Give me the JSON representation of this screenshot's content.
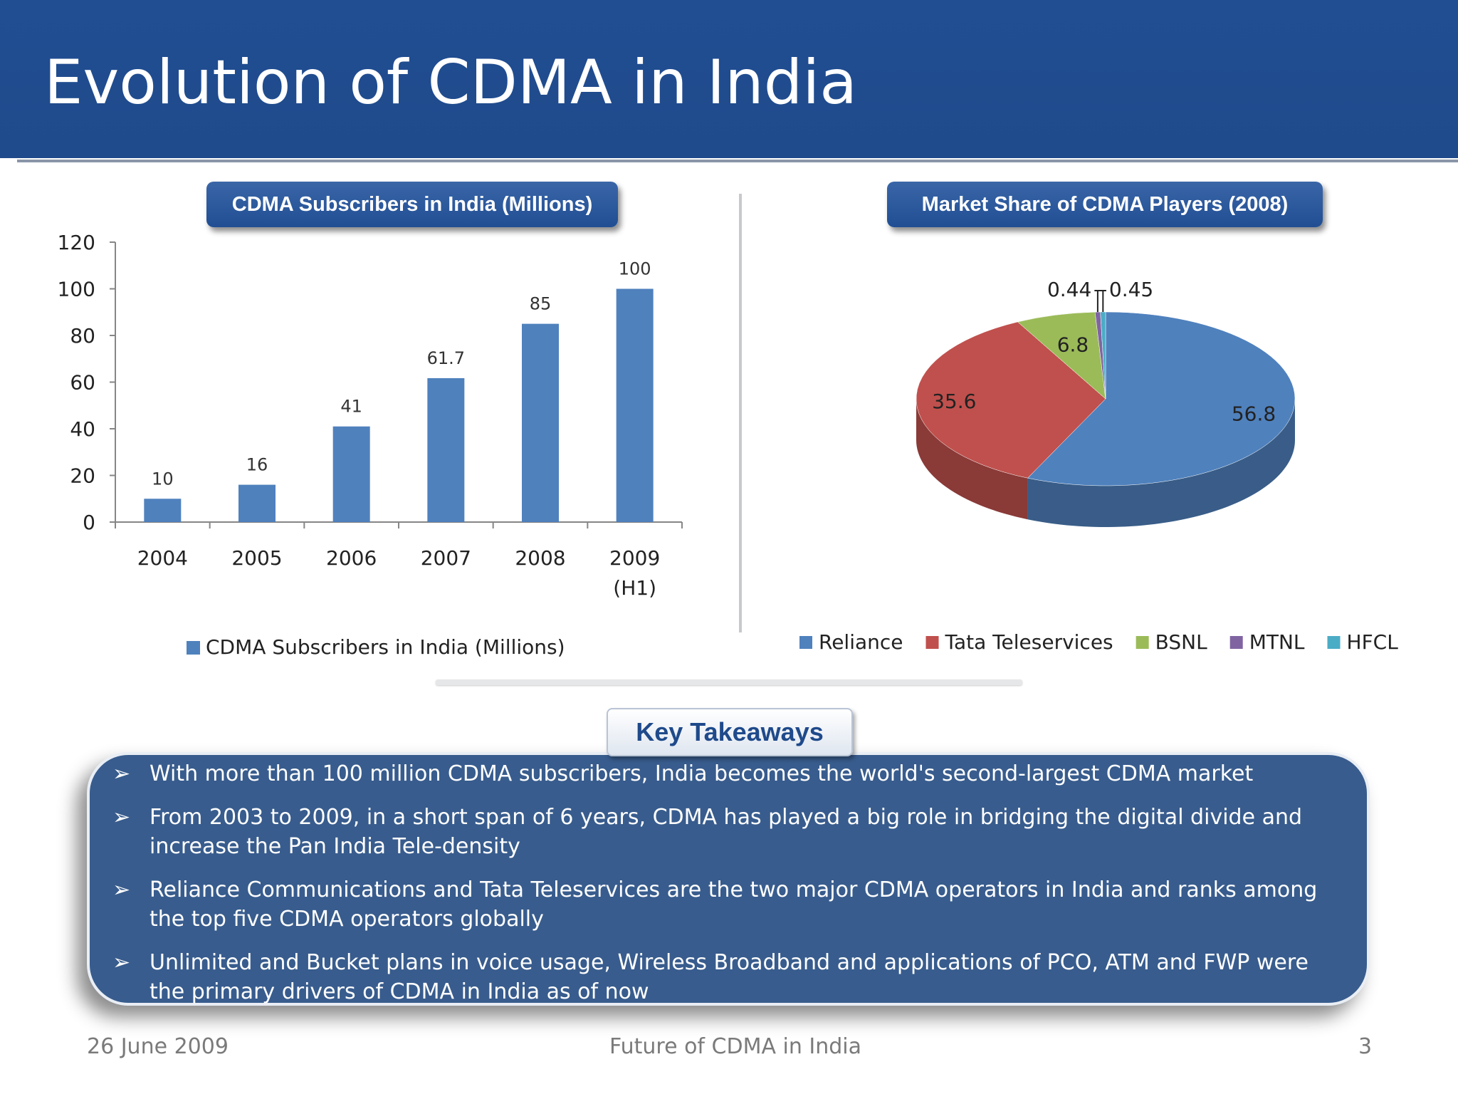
{
  "slide": {
    "title": "Evolution of CDMA in India",
    "footer_date": "26 June 2009",
    "footer_center": "Future of CDMA in India",
    "page_number": "3"
  },
  "headers": {
    "left": "CDMA Subscribers in India (Millions)",
    "right": "Market Share of CDMA Players (2008)"
  },
  "takeaways": {
    "heading": "Key Takeaways",
    "bullet_icon": "arrowhead-bullet-icon",
    "items": [
      "With more than 100 million CDMA subscribers, India becomes the world's second-largest CDMA market",
      "From 2003 to 2009, in a short span of 6 years, CDMA has played a big role in bridging the digital divide and increase the Pan India Tele-density",
      "Reliance Communications and Tata Teleservices are the two major  CDMA operators in India and ranks among the top five CDMA operators globally",
      "Unlimited and Bucket plans in voice usage, Wireless Broadband and applications of PCO, ATM and FWP were the primary drivers of CDMA in India as of now"
    ]
  },
  "colors": {
    "title_bar": "#214e93",
    "bar": "#4f81bd",
    "reliance": "#4f81bd",
    "tata": "#c0504d",
    "bsnl": "#9bbb59",
    "mtnl": "#8064a2",
    "hfcl": "#4bacc6"
  },
  "chart_data": [
    {
      "type": "bar",
      "categories": [
        "2004",
        "2005",
        "2006",
        "2007",
        "2008",
        "2009|(H1)"
      ],
      "series": [
        {
          "name": "CDMA Subscribers in India (Millions)",
          "values": [
            10,
            16,
            41,
            61.7,
            85,
            100
          ],
          "color": "#4f81bd"
        }
      ],
      "data_labels": [
        "10",
        "16",
        "41",
        "61.7",
        "85",
        "100"
      ],
      "yticks": [
        "0",
        "20",
        "40",
        "60",
        "80",
        "100",
        "120"
      ],
      "ylim": [
        0,
        120
      ],
      "grid": false,
      "legend": "bottom"
    },
    {
      "type": "pie",
      "style": "3d",
      "slices": [
        {
          "label": "Reliance",
          "value": 56.8,
          "display": "56.8",
          "color": "#4f81bd"
        },
        {
          "label": "Tata Teleservices",
          "value": 35.6,
          "display": "35.6",
          "color": "#c0504d"
        },
        {
          "label": "BSNL",
          "value": 6.8,
          "display": "6.8",
          "color": "#9bbb59"
        },
        {
          "label": "MTNL",
          "value": 0.45,
          "display": "0.45",
          "color": "#8064a2"
        },
        {
          "label": "HFCL",
          "value": 0.44,
          "display": "0.44",
          "color": "#4bacc6"
        }
      ],
      "legend": "bottom"
    }
  ]
}
